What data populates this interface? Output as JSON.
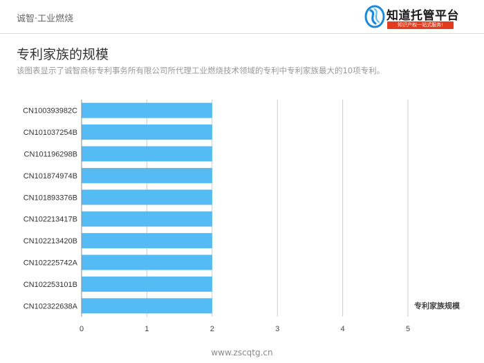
{
  "header": {
    "title": "诚智·工业燃烧",
    "logo": {
      "icon": "wave-logo-icon",
      "name": "知道托管平台",
      "slogan": "知识产权一站式服务!"
    }
  },
  "page": {
    "title": "专利家族的规模",
    "description": "该图表显示了诚智商标专利事务所有限公司所代理工业燃烧技术领域的专利中专利家族最大的10项专利。"
  },
  "chart_data": {
    "type": "bar",
    "orientation": "horizontal",
    "categories": [
      "CN100393982C",
      "CN101037254B",
      "CN101196298B",
      "CN101874974B",
      "CN101893376B",
      "CN102213417B",
      "CN102213420B",
      "CN102225742A",
      "CN102253101B",
      "CN102322638A"
    ],
    "values": [
      2,
      2,
      2,
      2,
      2,
      2,
      2,
      2,
      2,
      2
    ],
    "xlim": [
      0,
      5
    ],
    "xticks": [
      "0",
      "1",
      "2",
      "3",
      "4",
      "5"
    ],
    "legend": "专利家族规模",
    "legend_position": "bottom-right",
    "bar_color": "#55bbf5",
    "grid": true
  },
  "footer": {
    "url": "www.zscqtg.cn"
  },
  "colors": {
    "slogan_bg": "#e23b1f",
    "logo_blue": "#1e88d8"
  }
}
